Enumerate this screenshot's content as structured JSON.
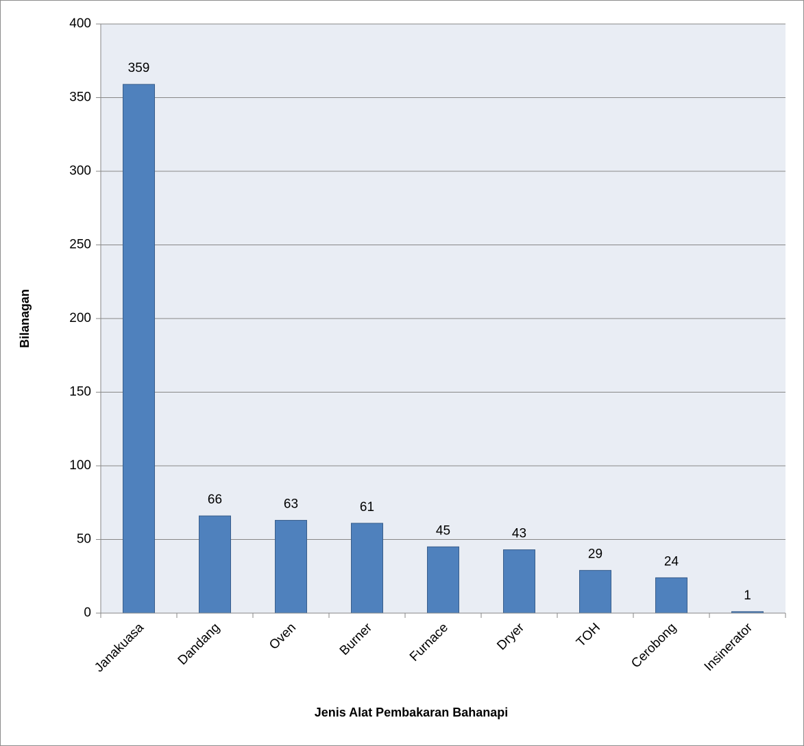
{
  "chart_data": {
    "type": "bar",
    "title": "",
    "xlabel": "Jenis Alat Pembakaran Bahanapi",
    "ylabel": "Bilanagan",
    "categories": [
      "Janakuasa",
      "Dandang",
      "Oven",
      "Burner",
      "Furnace",
      "Dryer",
      "TOH",
      "Cerobong",
      "Insinerator"
    ],
    "values": [
      359,
      66,
      63,
      61,
      45,
      43,
      29,
      24,
      1
    ],
    "ylim": [
      0,
      400
    ],
    "yticks": [
      0,
      50,
      100,
      150,
      200,
      250,
      300,
      350,
      400
    ],
    "grid": true,
    "legend": "none",
    "colors": {
      "bar_fill": "#4f81bd",
      "bar_stroke": "#385d8a",
      "plot_background": "#e9edf4",
      "gridline": "#868686"
    }
  }
}
